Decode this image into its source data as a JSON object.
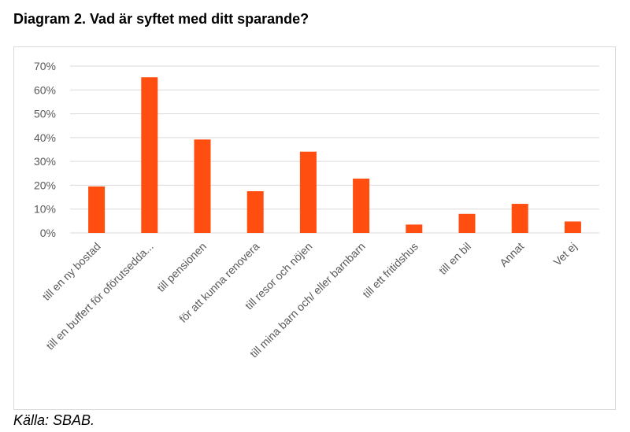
{
  "title": "Diagram 2. Vad är syftet med ditt sparande?",
  "source": "Källa: SBAB.",
  "chart_data": {
    "type": "bar",
    "categories": [
      "till en ny bostad",
      "till en buffert för oförutsedda...",
      "till pensionen",
      "för att kunna renovera",
      "till resor och nöjen",
      "till mina barn och/ eller barnbarn",
      "till ett fritidshus",
      "till en bil",
      "Annat",
      "Vet ej"
    ],
    "values": [
      19.5,
      65.3,
      39.2,
      17.5,
      34.1,
      22.8,
      3.5,
      8.0,
      12.2,
      4.8
    ],
    "value_unit": "%",
    "yticks": [
      "0%",
      "10%",
      "20%",
      "30%",
      "40%",
      "50%",
      "60%",
      "70%"
    ],
    "ylim": [
      0,
      70
    ],
    "grid": true,
    "legend": "none",
    "bar_color": "#ff4e0f",
    "grid_color": "#d9d9d9"
  }
}
